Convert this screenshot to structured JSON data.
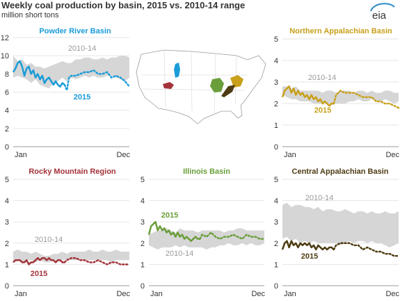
{
  "header": {
    "title": "Weekly coal production by basin, 2015 vs. 2010-14 range",
    "subtitle": "million short tons",
    "logo_text": "eia"
  },
  "map": {
    "description_icon": "us-map-icon",
    "colors": {
      "powder_river": "#1a9cd8",
      "rocky_mountain": "#a3323a",
      "illinois": "#6a9e3a",
      "northern_appalachian": "#c8a01a",
      "central_appalachian": "#4d3b12"
    }
  },
  "chart_data": [
    {
      "id": "powder-river",
      "type": "line",
      "title": "Powder River Basin",
      "color": "#1a9cd8",
      "xlim": [
        0,
        52
      ],
      "ylim": [
        0,
        12
      ],
      "yticks": [
        0,
        2,
        4,
        6,
        8,
        10,
        12
      ],
      "xticklabels": [
        "Jan",
        "Dec"
      ],
      "range_label": "2010-14",
      "series_label": "2015",
      "range": {
        "x": [
          0,
          2,
          4,
          6,
          8,
          10,
          12,
          14,
          16,
          18,
          20,
          22,
          24,
          26,
          28,
          30,
          32,
          34,
          36,
          38,
          40,
          42,
          44,
          46,
          48,
          50,
          52
        ],
        "low": [
          7.6,
          7.8,
          7.6,
          7.4,
          7.0,
          7.4,
          6.8,
          6.6,
          6.4,
          7.0,
          7.2,
          7.6,
          7.2,
          7.6,
          7.4,
          7.6,
          7.8,
          7.6,
          7.8,
          7.6,
          7.6,
          7.8,
          7.8,
          7.6,
          7.4,
          7.2,
          7.6
        ],
        "high": [
          10.0,
          9.4,
          9.6,
          9.0,
          9.2,
          8.8,
          8.8,
          8.6,
          8.8,
          9.0,
          9.2,
          9.4,
          9.2,
          9.2,
          9.6,
          9.6,
          9.8,
          9.8,
          9.6,
          9.6,
          9.8,
          9.6,
          9.8,
          9.8,
          10.0,
          10.0,
          9.8
        ]
      },
      "actual": {
        "x": [
          0,
          1,
          2,
          3,
          4,
          5,
          6,
          7,
          8,
          9,
          10,
          11,
          12,
          13,
          14,
          15,
          16,
          17,
          18,
          19,
          20,
          21,
          22,
          23
        ],
        "y": [
          8.2,
          8.6,
          9.2,
          9.4,
          8.8,
          7.8,
          8.6,
          8.8,
          8.0,
          8.4,
          7.6,
          8.0,
          7.4,
          7.8,
          7.0,
          7.4,
          7.6,
          7.2,
          6.8,
          7.2,
          6.8,
          6.6,
          7.0,
          6.8
        ]
      },
      "projected": {
        "x": [
          23,
          24,
          25,
          26,
          28,
          30,
          32,
          34,
          36,
          38,
          40,
          42,
          44,
          46,
          48,
          50,
          52
        ],
        "y": [
          6.8,
          6.2,
          7.6,
          7.8,
          7.8,
          8.0,
          8.2,
          8.2,
          8.4,
          8.0,
          8.0,
          8.2,
          7.6,
          7.8,
          7.6,
          7.2,
          6.6
        ]
      }
    },
    {
      "id": "northern-appalachian",
      "type": "line",
      "title": "Northern Appalachian Basin",
      "color": "#c8a01a",
      "xlim": [
        0,
        52
      ],
      "ylim": [
        0,
        5
      ],
      "yticks": [
        0,
        1,
        2,
        3,
        4,
        5
      ],
      "xticklabels": [
        "Jan",
        "Dec"
      ],
      "range_label": "2010-14",
      "series_label": "2015",
      "range": {
        "x": [
          0,
          2,
          4,
          6,
          8,
          10,
          12,
          14,
          16,
          18,
          20,
          22,
          24,
          26,
          28,
          30,
          32,
          34,
          36,
          38,
          40,
          42,
          44,
          46,
          48,
          50,
          52
        ],
        "low": [
          2.4,
          2.3,
          2.2,
          2.2,
          2.1,
          2.1,
          2.1,
          2.0,
          2.0,
          2.0,
          2.0,
          2.0,
          2.0,
          2.0,
          2.0,
          2.1,
          2.1,
          2.2,
          2.1,
          2.1,
          2.2,
          2.1,
          2.1,
          2.2,
          2.1,
          2.0,
          2.1
        ],
        "high": [
          2.8,
          2.8,
          2.7,
          2.8,
          2.6,
          2.6,
          2.6,
          2.6,
          2.6,
          2.5,
          2.6,
          2.6,
          2.5,
          2.6,
          2.6,
          2.6,
          2.5,
          2.6,
          2.6,
          2.5,
          2.6,
          2.5,
          2.5,
          2.6,
          2.6,
          2.5,
          2.5
        ]
      },
      "actual": {
        "x": [
          0,
          1,
          2,
          3,
          4,
          5,
          6,
          7,
          8,
          9,
          10,
          11,
          12,
          13,
          14,
          15,
          16,
          17,
          18,
          19,
          20,
          21,
          22,
          23
        ],
        "y": [
          2.3,
          2.6,
          2.7,
          2.8,
          2.5,
          2.7,
          2.4,
          2.6,
          2.4,
          2.5,
          2.3,
          2.4,
          2.2,
          2.4,
          2.2,
          2.3,
          2.1,
          2.2,
          2.0,
          2.1,
          2.0,
          1.9,
          2.0,
          2.0
        ]
      },
      "projected": {
        "x": [
          23,
          24,
          26,
          28,
          30,
          32,
          34,
          36,
          38,
          40,
          42,
          44,
          46,
          48,
          50,
          52
        ],
        "y": [
          2.0,
          2.4,
          2.6,
          2.5,
          2.5,
          2.5,
          2.4,
          2.3,
          2.3,
          2.3,
          2.1,
          2.1,
          2.0,
          2.0,
          1.9,
          1.8
        ]
      }
    },
    {
      "id": "rocky-mountain",
      "type": "line",
      "title": "Rocky Mountain Region",
      "color": "#a3323a",
      "xlim": [
        0,
        52
      ],
      "ylim": [
        0,
        5
      ],
      "yticks": [
        0,
        1,
        2,
        3,
        4,
        5
      ],
      "xticklabels": [
        "Jan",
        "Dec"
      ],
      "range_label": "2010-14",
      "series_label": "2015",
      "range": {
        "x": [
          0,
          2,
          4,
          6,
          8,
          10,
          12,
          14,
          16,
          18,
          20,
          22,
          24,
          26,
          28,
          30,
          32,
          34,
          36,
          38,
          40,
          42,
          44,
          46,
          48,
          50,
          52
        ],
        "low": [
          1.2,
          1.2,
          1.1,
          1.2,
          1.2,
          1.1,
          1.2,
          1.1,
          1.1,
          1.2,
          1.2,
          1.2,
          1.2,
          1.2,
          1.2,
          1.2,
          1.2,
          1.2,
          1.2,
          1.2,
          1.2,
          1.2,
          1.1,
          1.2,
          1.2,
          1.2,
          1.2
        ],
        "high": [
          1.6,
          1.7,
          1.6,
          1.6,
          1.5,
          1.6,
          1.5,
          1.4,
          1.4,
          1.5,
          1.5,
          1.6,
          1.5,
          1.6,
          1.6,
          1.6,
          1.6,
          1.7,
          1.6,
          1.6,
          1.7,
          1.6,
          1.6,
          1.7,
          1.6,
          1.6,
          1.6
        ]
      },
      "actual": {
        "x": [
          0,
          1,
          2,
          3,
          4,
          5,
          6,
          7,
          8,
          9,
          10,
          11,
          12,
          13,
          14,
          15,
          16,
          17,
          18,
          19,
          20,
          21,
          22,
          23
        ],
        "y": [
          1.1,
          1.2,
          1.2,
          1.2,
          1.1,
          1.1,
          1.2,
          1.0,
          1.1,
          1.1,
          1.2,
          1.3,
          1.2,
          1.3,
          1.3,
          1.2,
          1.3,
          1.2,
          1.2,
          1.1,
          1.2,
          1.2,
          1.1,
          1.1
        ]
      },
      "projected": {
        "x": [
          23,
          24,
          26,
          28,
          30,
          32,
          34,
          36,
          38,
          40,
          42,
          44,
          46,
          48,
          50,
          52
        ],
        "y": [
          1.1,
          1.2,
          1.3,
          1.3,
          1.2,
          1.2,
          1.1,
          1.1,
          1.2,
          1.1,
          1.0,
          1.1,
          1.1,
          1.0,
          1.0,
          1.0
        ]
      }
    },
    {
      "id": "illinois",
      "type": "line",
      "title": "Illinois Basin",
      "color": "#6a9e3a",
      "xlim": [
        0,
        52
      ],
      "ylim": [
        0,
        5
      ],
      "yticks": [
        0,
        1,
        2,
        3,
        4,
        5
      ],
      "xticklabels": [
        "Jan",
        "Dec"
      ],
      "range_label": "2010-14",
      "series_label": "2015",
      "range": {
        "x": [
          0,
          2,
          4,
          6,
          8,
          10,
          12,
          14,
          16,
          18,
          20,
          22,
          24,
          26,
          28,
          30,
          32,
          34,
          36,
          38,
          40,
          42,
          44,
          46,
          48,
          50,
          52
        ],
        "low": [
          1.9,
          1.8,
          1.7,
          1.8,
          1.8,
          1.8,
          1.9,
          1.8,
          1.9,
          1.8,
          1.8,
          1.8,
          1.8,
          1.7,
          1.8,
          1.8,
          1.9,
          1.9,
          2.0,
          1.9,
          1.9,
          2.0,
          1.9,
          2.0,
          1.9,
          1.9,
          2.0
        ],
        "high": [
          2.4,
          2.5,
          2.6,
          2.6,
          2.7,
          2.6,
          2.5,
          2.7,
          2.6,
          2.6,
          2.6,
          2.5,
          2.6,
          2.6,
          2.6,
          2.6,
          2.6,
          2.5,
          2.6,
          2.6,
          2.7,
          2.7,
          2.6,
          2.6,
          2.6,
          2.6,
          2.6
        ]
      },
      "actual": {
        "x": [
          0,
          1,
          2,
          3,
          4,
          5,
          6,
          7,
          8,
          9,
          10,
          11,
          12,
          13,
          14,
          15,
          16,
          17,
          18,
          19,
          20,
          21,
          22,
          23
        ],
        "y": [
          2.4,
          2.8,
          2.9,
          3.0,
          2.6,
          2.8,
          2.6,
          2.7,
          2.5,
          2.6,
          2.4,
          2.5,
          2.3,
          2.5,
          2.3,
          2.4,
          2.2,
          2.3,
          2.2,
          2.1,
          2.2,
          2.3,
          2.2,
          2.2
        ]
      },
      "projected": {
        "x": [
          23,
          24,
          26,
          28,
          30,
          32,
          34,
          36,
          38,
          40,
          42,
          44,
          46,
          48,
          50,
          52
        ],
        "y": [
          2.2,
          2.4,
          2.3,
          2.5,
          2.3,
          2.2,
          2.3,
          2.3,
          2.4,
          2.3,
          2.2,
          2.4,
          2.3,
          2.3,
          2.2,
          2.2
        ]
      }
    },
    {
      "id": "central-appalachian",
      "type": "line",
      "title": "Central Appalachian Basin",
      "color": "#4d3b12",
      "xlim": [
        0,
        52
      ],
      "ylim": [
        0,
        5
      ],
      "yticks": [
        0,
        1,
        2,
        3,
        4,
        5
      ],
      "xticklabels": [
        "Jan",
        "Dec"
      ],
      "range_label": "2010-14",
      "series_label": "2015",
      "range": {
        "x": [
          0,
          2,
          4,
          6,
          8,
          10,
          12,
          14,
          16,
          18,
          20,
          22,
          24,
          26,
          28,
          30,
          32,
          34,
          36,
          38,
          40,
          42,
          44,
          46,
          48,
          50,
          52
        ],
        "low": [
          2.2,
          2.3,
          2.1,
          2.2,
          2.0,
          2.1,
          2.0,
          2.1,
          2.0,
          2.0,
          2.0,
          2.0,
          2.0,
          1.9,
          2.0,
          2.1,
          2.0,
          2.1,
          2.1,
          2.0,
          2.1,
          2.0,
          2.0,
          1.9,
          1.8,
          1.9,
          2.0
        ],
        "high": [
          3.8,
          3.9,
          3.7,
          3.8,
          3.8,
          3.7,
          3.7,
          3.6,
          3.7,
          3.5,
          3.6,
          3.6,
          3.5,
          3.5,
          3.6,
          3.5,
          3.4,
          3.5,
          3.5,
          3.4,
          3.5,
          3.4,
          3.4,
          3.5,
          3.4,
          3.4,
          3.5
        ]
      },
      "actual": {
        "x": [
          0,
          1,
          2,
          3,
          4,
          5,
          6,
          7,
          8,
          9,
          10,
          11,
          12,
          13,
          14,
          15,
          16,
          17,
          18,
          19,
          20,
          21,
          22,
          23
        ],
        "y": [
          1.7,
          2.0,
          2.1,
          1.8,
          2.1,
          1.9,
          2.0,
          1.8,
          2.0,
          1.9,
          2.0,
          1.9,
          2.0,
          1.8,
          1.9,
          1.7,
          1.9,
          1.8,
          1.7,
          1.8,
          1.7,
          1.8,
          1.8,
          1.7
        ]
      },
      "projected": {
        "x": [
          23,
          24,
          26,
          28,
          30,
          32,
          34,
          36,
          38,
          40,
          42,
          44,
          46,
          48,
          50,
          52
        ],
        "y": [
          1.7,
          1.9,
          2.0,
          2.0,
          2.0,
          1.9,
          1.9,
          1.7,
          1.8,
          1.7,
          1.6,
          1.6,
          1.5,
          1.5,
          1.4,
          1.4
        ]
      }
    }
  ]
}
